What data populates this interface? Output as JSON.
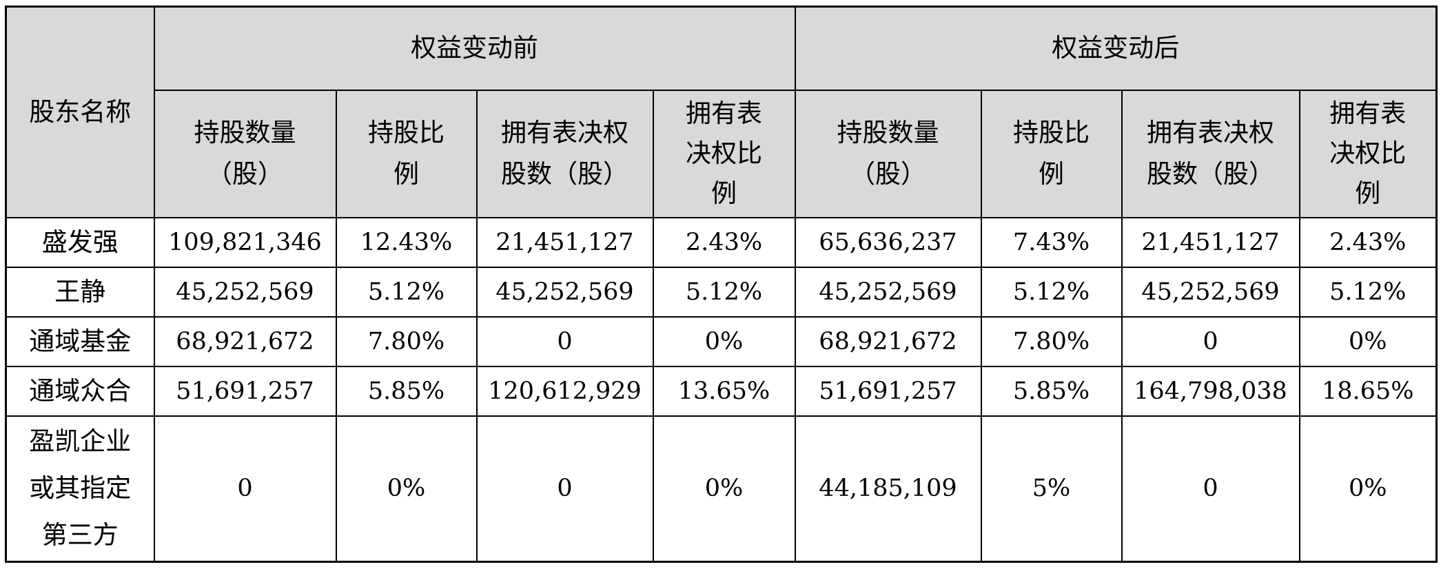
{
  "headers": {
    "shareholder_name": "股东名称",
    "before_group": "权益变动前",
    "after_group": "权益变动后",
    "before": {
      "shares": "持股数量（股）",
      "share_ratio": "持股比例",
      "voting_shares": "拥有表决权股数（股）",
      "voting_ratio": "拥有表决权比例"
    },
    "after": {
      "shares": "持股数量（股）",
      "share_ratio": "持股比例",
      "voting_shares": "拥有表决权股数（股）",
      "voting_ratio": "拥有表决权比例"
    }
  },
  "rows": [
    {
      "name": "盛发强",
      "before_shares": "109,821,346",
      "before_share_ratio": "12.43%",
      "before_voting_shares": "21,451,127",
      "before_voting_ratio": "2.43%",
      "after_shares": "65,636,237",
      "after_share_ratio": "7.43%",
      "after_voting_shares": "21,451,127",
      "after_voting_ratio": "2.43%"
    },
    {
      "name": "王静",
      "before_shares": "45,252,569",
      "before_share_ratio": "5.12%",
      "before_voting_shares": "45,252,569",
      "before_voting_ratio": "5.12%",
      "after_shares": "45,252,569",
      "after_share_ratio": "5.12%",
      "after_voting_shares": "45,252,569",
      "after_voting_ratio": "5.12%"
    },
    {
      "name": "通域基金",
      "before_shares": "68,921,672",
      "before_share_ratio": "7.80%",
      "before_voting_shares": "0",
      "before_voting_ratio": "0%",
      "after_shares": "68,921,672",
      "after_share_ratio": "7.80%",
      "after_voting_shares": "0",
      "after_voting_ratio": "0%"
    },
    {
      "name": "通域众合",
      "before_shares": "51,691,257",
      "before_share_ratio": "5.85%",
      "before_voting_shares": "120,612,929",
      "before_voting_ratio": "13.65%",
      "after_shares": "51,691,257",
      "after_share_ratio": "5.85%",
      "after_voting_shares": "164,798,038",
      "after_voting_ratio": "18.65%"
    },
    {
      "name": "盈凯企业或其指定第三方",
      "before_shares": "0",
      "before_share_ratio": "0%",
      "before_voting_shares": "0",
      "before_voting_ratio": "0%",
      "after_shares": "44,185,109",
      "after_share_ratio": "5%",
      "after_voting_shares": "0",
      "after_voting_ratio": "0%"
    }
  ]
}
